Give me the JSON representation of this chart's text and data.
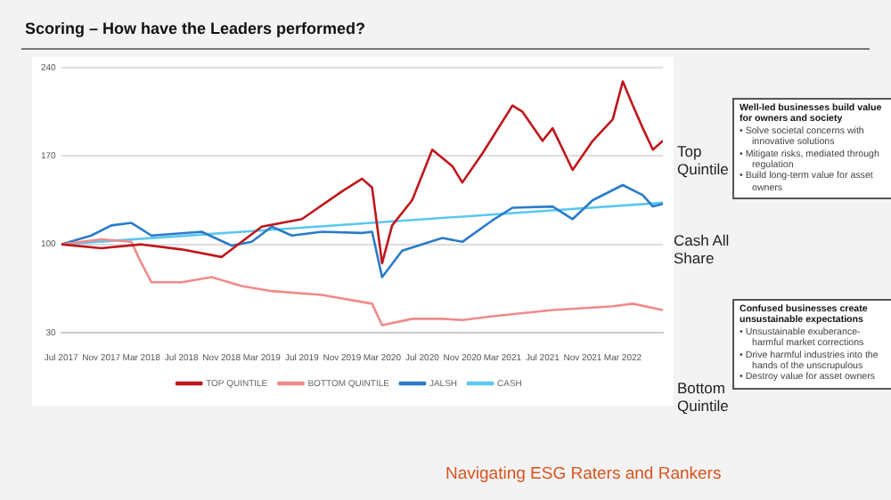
{
  "chart_data": {
    "type": "line",
    "title": "Scoring – How have the Leaders performed?",
    "xlim": [
      "2017-07",
      "2022-07"
    ],
    "xticks": [
      {
        "value": "2017-07",
        "label": "Jul 2017"
      },
      {
        "value": "2017-11",
        "label": "Nov 2017"
      },
      {
        "value": "2018-03",
        "label": "Mar 2018"
      },
      {
        "value": "2018-07",
        "label": "Jul 2018"
      },
      {
        "value": "2018-11",
        "label": "Nov 2018"
      },
      {
        "value": "2019-03",
        "label": "Mar 2019"
      },
      {
        "value": "2019-07",
        "label": "Jul 2019"
      },
      {
        "value": "2019-11",
        "label": "Nov 2019"
      },
      {
        "value": "2020-03",
        "label": "Mar 2020"
      },
      {
        "value": "2020-07",
        "label": "Jul 2020"
      },
      {
        "value": "2020-11",
        "label": "Nov 2020"
      },
      {
        "value": "2021-03",
        "label": "Mar 2021"
      },
      {
        "value": "2021-07",
        "label": "Jul 2021"
      },
      {
        "value": "2021-11",
        "label": "Nov 2021"
      },
      {
        "value": "2022-03",
        "label": "Mar 2022"
      }
    ],
    "ylim": [
      30,
      240
    ],
    "yticks": [
      30,
      100,
      170,
      240
    ],
    "grid": "y",
    "legend": "bottom",
    "marker": "none",
    "line_style": "solid",
    "series": [
      {
        "name": "TOP QUINTILE",
        "color": "#c0161c",
        "x": [
          "2017-07",
          "2017-11",
          "2018-03",
          "2018-07",
          "2018-11",
          "2019-01",
          "2019-03",
          "2019-07",
          "2019-11",
          "2020-01",
          "2020-02",
          "2020-03",
          "2020-04",
          "2020-06",
          "2020-08",
          "2020-10",
          "2020-11",
          "2021-01",
          "2021-04",
          "2021-05",
          "2021-07",
          "2021-08",
          "2021-10",
          "2021-12",
          "2022-02",
          "2022-03",
          "2022-04",
          "2022-05",
          "2022-06",
          "2022-07"
        ],
        "values": [
          100,
          97,
          100,
          96,
          90,
          102,
          114,
          120,
          142,
          152,
          145,
          85,
          115,
          135,
          175,
          162,
          149,
          172,
          210,
          205,
          182,
          192,
          159,
          182,
          199,
          229,
          210,
          192,
          175,
          182
        ]
      },
      {
        "name": "BOTTOM QUINTILE",
        "color": "#f08a8a",
        "x": [
          "2017-07",
          "2017-11",
          "2018-02",
          "2018-03",
          "2018-04",
          "2018-07",
          "2018-10",
          "2019-01",
          "2019-04",
          "2019-09",
          "2020-02",
          "2020-03",
          "2020-06",
          "2020-09",
          "2020-11",
          "2021-02",
          "2021-08",
          "2022-02",
          "2022-04",
          "2022-07"
        ],
        "values": [
          100,
          104,
          102,
          85,
          70,
          70,
          74,
          67,
          63,
          60,
          53,
          36,
          41,
          41,
          40,
          43,
          48,
          51,
          53,
          48
        ]
      },
      {
        "name": "JALSH",
        "color": "#2b7bc9",
        "x": [
          "2017-07",
          "2017-10",
          "2017-12",
          "2018-02",
          "2018-04",
          "2018-09",
          "2018-12",
          "2019-02",
          "2019-04",
          "2019-06",
          "2019-09",
          "2020-01",
          "2020-02",
          "2020-03",
          "2020-05",
          "2020-09",
          "2020-11",
          "2021-02",
          "2021-04",
          "2021-08",
          "2021-10",
          "2021-12",
          "2022-03",
          "2022-05",
          "2022-06",
          "2022-07"
        ],
        "values": [
          100,
          107,
          115,
          117,
          107,
          110,
          99,
          102,
          114,
          107,
          110,
          109,
          110,
          74,
          95,
          105,
          102,
          119,
          129,
          130,
          120,
          135,
          147,
          139,
          130,
          132
        ]
      },
      {
        "name": "CASH",
        "color": "#5bc8f0",
        "x": [
          "2017-07",
          "2022-07"
        ],
        "values": [
          100,
          133
        ]
      }
    ],
    "annotations": [
      "Top Quintile",
      "Cash All Share",
      "Bottom Quintile",
      "Well-led businesses build value for owners and society\n• Solve societal concerns with innovative solutions\n• Mitigate risks, mediated through regulation\n• Build long-term value for asset owners",
      "Confused businesses create unsustainable expectations\n• Unsustainable exuberance- harmful market corrections\n• Drive harmful industries into the hands of the unscrupulous\n• Destroy value for asset owners",
      "Navigating ESG Raters and Rankers"
    ]
  }
}
